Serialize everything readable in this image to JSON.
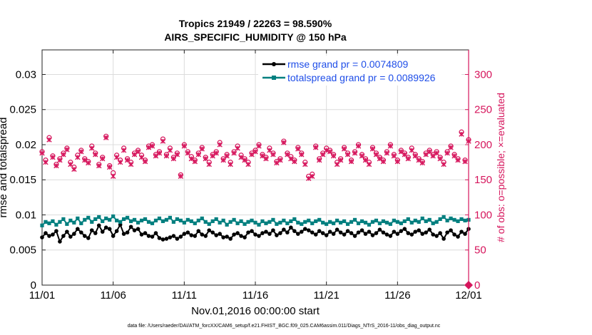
{
  "chart_data": {
    "type": "line",
    "title_line1": "Tropics 21949 / 22263 = 98.590%",
    "title_line2": "AIRS_SPECIFIC_HUMIDITY @ 150 hPa",
    "xlabel": "Nov.01,2016 00:00:00 start",
    "ylabel_left": "rmse and totalspread",
    "ylabel_right": "# of obs: o=possible; ×=evaluated",
    "footnote": "data file: /Users/raeder/DAI/ATM_forcXX/CAM6_setup/f.e21.FHIST_BGC.f09_025.CAM6assim.011/Diags_NTrS_2016-11/obs_diag_output.nc",
    "x_ticks": [
      "11/01",
      "11/06",
      "11/11",
      "11/16",
      "11/21",
      "11/26",
      "12/01"
    ],
    "x_range_days": [
      0,
      30
    ],
    "y_left_ticks": [
      "0",
      "0.005",
      "0.01",
      "0.015",
      "0.02",
      "0.025",
      "0.03"
    ],
    "y_left_range": [
      0,
      0.0335
    ],
    "y_right_ticks": [
      "0",
      "50",
      "100",
      "150",
      "200",
      "250",
      "300"
    ],
    "y_right_range": [
      0,
      335
    ],
    "grid": true,
    "legend_position": "top-right",
    "colors": {
      "rmse": "#000000",
      "spread": "#007f7f",
      "obs": "#d6155c",
      "grid": "#dcdcdc",
      "axis": "#222222"
    },
    "series": [
      {
        "name": "rmse grand pr = 0.0074809",
        "key": "rmse",
        "values": [
          0.0068,
          0.0074,
          0.007,
          0.0072,
          0.0077,
          0.0062,
          0.007,
          0.0076,
          0.0069,
          0.0073,
          0.008,
          0.0075,
          0.007,
          0.0067,
          0.0078,
          0.0074,
          0.0085,
          0.0076,
          0.0082,
          0.008,
          0.007,
          0.0077,
          0.0086,
          0.0073,
          0.0075,
          0.0083,
          0.0078,
          0.008,
          0.0072,
          0.0074,
          0.007,
          0.0069,
          0.0074,
          0.0067,
          0.0065,
          0.0066,
          0.0068,
          0.007,
          0.0066,
          0.0069,
          0.0073,
          0.0075,
          0.0071,
          0.007,
          0.0077,
          0.0072,
          0.007,
          0.0078,
          0.0075,
          0.0071,
          0.0073,
          0.0068,
          0.0069,
          0.0066,
          0.0072,
          0.0074,
          0.007,
          0.0068,
          0.0075,
          0.0077,
          0.0072,
          0.007,
          0.0074,
          0.0076,
          0.0073,
          0.0078,
          0.0071,
          0.0074,
          0.0079,
          0.0075,
          0.0082,
          0.0077,
          0.0073,
          0.0076,
          0.008,
          0.0078,
          0.0075,
          0.0072,
          0.0077,
          0.0074,
          0.0071,
          0.0076,
          0.0073,
          0.0079,
          0.0075,
          0.0072,
          0.0077,
          0.0074,
          0.007,
          0.0075,
          0.0078,
          0.0073,
          0.0076,
          0.0071,
          0.0074,
          0.0079,
          0.0075,
          0.0072,
          0.007,
          0.0076,
          0.0073,
          0.0077,
          0.008,
          0.0074,
          0.0072,
          0.0076,
          0.0078,
          0.0073,
          0.0075,
          0.0079,
          0.0072,
          0.007,
          0.0074,
          0.0066,
          0.0075,
          0.0078,
          0.0072,
          0.0069,
          0.0076,
          0.0073,
          0.008
        ]
      },
      {
        "name": "totalspread grand pr = 0.0089926",
        "key": "spread",
        "values": [
          0.0085,
          0.009,
          0.0088,
          0.0091,
          0.0086,
          0.009,
          0.0094,
          0.0087,
          0.0092,
          0.0089,
          0.0095,
          0.0088,
          0.0093,
          0.0096,
          0.009,
          0.0094,
          0.0097,
          0.0091,
          0.0095,
          0.0093,
          0.0098,
          0.0092,
          0.009,
          0.0094,
          0.0096,
          0.0091,
          0.0093,
          0.0089,
          0.0092,
          0.0094,
          0.009,
          0.0088,
          0.0092,
          0.0095,
          0.0091,
          0.0093,
          0.0096,
          0.009,
          0.0094,
          0.0092,
          0.0089,
          0.0093,
          0.0091,
          0.0088,
          0.0092,
          0.0095,
          0.009,
          0.0087,
          0.0091,
          0.0094,
          0.0089,
          0.0092,
          0.0086,
          0.009,
          0.0093,
          0.0088,
          0.0091,
          0.0087,
          0.009,
          0.0092,
          0.0089,
          0.0086,
          0.0091,
          0.0088,
          0.009,
          0.0093,
          0.0087,
          0.0089,
          0.0092,
          0.0088,
          0.0091,
          0.0094,
          0.0089,
          0.0087,
          0.009,
          0.0092,
          0.0088,
          0.0091,
          0.0093,
          0.0089,
          0.0087,
          0.009,
          0.0088,
          0.0092,
          0.0089,
          0.0091,
          0.0087,
          0.009,
          0.0093,
          0.0088,
          0.0091,
          0.0089,
          0.0086,
          0.009,
          0.0092,
          0.0088,
          0.0091,
          0.0089,
          0.0087,
          0.0092,
          0.009,
          0.0088,
          0.0091,
          0.0094,
          0.0089,
          0.0092,
          0.009,
          0.0095,
          0.0091,
          0.0093,
          0.0088,
          0.009,
          0.0094,
          0.0097,
          0.0092,
          0.0095,
          0.0093,
          0.0091,
          0.0094,
          0.0092,
          0.0093
        ]
      },
      {
        "name": "# of obs possible",
        "key": "obs_possible",
        "axis": "right",
        "values": [
          190,
          178,
          210,
          184,
          172,
          180,
          188,
          195,
          175,
          168,
          185,
          192,
          180,
          176,
          198,
          188,
          172,
          182,
          212,
          170,
          160,
          185,
          178,
          195,
          180,
          175,
          188,
          192,
          185,
          178,
          198,
          200,
          186,
          190,
          208,
          186,
          195,
          182,
          188,
          157,
          200,
          190,
          183,
          178,
          188,
          196,
          182,
          175,
          186,
          190,
          203,
          180,
          186,
          175,
          190,
          198,
          185,
          180,
          175,
          188,
          192,
          200,
          186,
          182,
          195,
          188,
          176,
          180,
          205,
          188,
          183,
          178,
          196,
          188,
          175,
          155,
          158,
          198,
          180,
          188,
          195,
          192,
          186,
          175,
          180,
          196,
          188,
          178,
          190,
          200,
          186,
          180,
          175,
          196,
          188,
          182,
          178,
          190,
          200,
          186,
          178,
          192,
          188,
          182,
          195,
          186,
          180,
          176,
          188,
          192,
          186,
          190,
          182,
          175,
          190,
          198,
          186,
          180,
          218,
          178,
          207
        ]
      },
      {
        "name": "# of obs evaluated",
        "key": "obs_evaluated",
        "axis": "right",
        "values": [
          188,
          175,
          207,
          182,
          170,
          178,
          186,
          193,
          172,
          165,
          182,
          190,
          178,
          174,
          195,
          186,
          170,
          180,
          210,
          168,
          155,
          182,
          175,
          192,
          178,
          172,
          186,
          190,
          182,
          176,
          196,
          198,
          184,
          188,
          205,
          184,
          192,
          180,
          186,
          155,
          198,
          188,
          180,
          176,
          186,
          194,
          180,
          172,
          184,
          188,
          200,
          178,
          184,
          172,
          188,
          195,
          182,
          178,
          172,
          186,
          190,
          198,
          184,
          180,
          192,
          186,
          174,
          178,
          203,
          186,
          180,
          176,
          194,
          186,
          172,
          152,
          155,
          196,
          178,
          186,
          192,
          190,
          184,
          172,
          178,
          194,
          186,
          176,
          188,
          198,
          184,
          178,
          172,
          194,
          186,
          180,
          176,
          188,
          198,
          184,
          176,
          190,
          186,
          180,
          192,
          184,
          178,
          174,
          186,
          190,
          184,
          188,
          180,
          172,
          188,
          196,
          184,
          178,
          215,
          176,
          205
        ]
      }
    ]
  }
}
